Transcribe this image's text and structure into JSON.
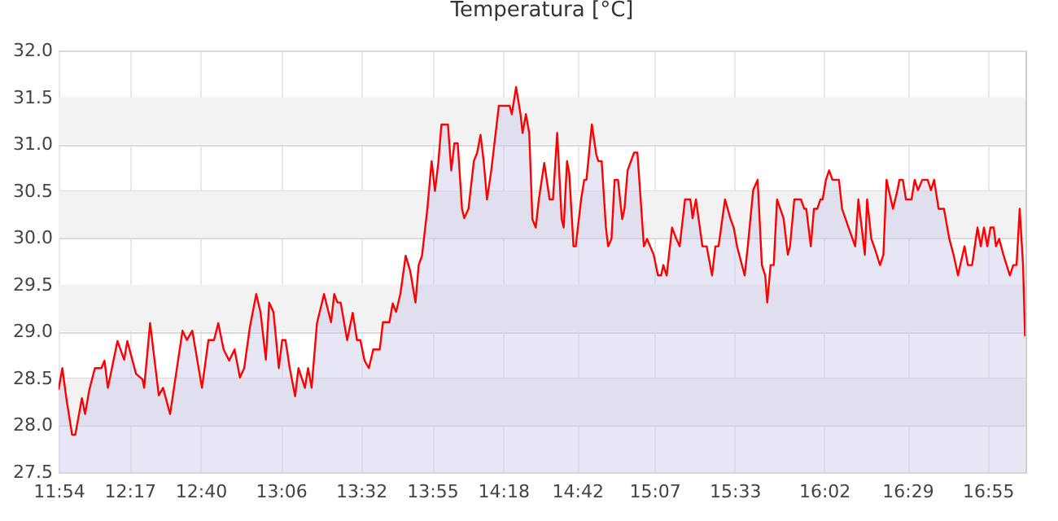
{
  "chart_data": {
    "type": "area",
    "title": "Temperatura [°C]",
    "grid": true,
    "xlim": [
      11.9,
      17.12
    ],
    "xticks": [
      {
        "value": 11.9,
        "label": "11:54"
      },
      {
        "value": 12.283,
        "label": "12:17"
      },
      {
        "value": 12.667,
        "label": "12:40"
      },
      {
        "value": 13.1,
        "label": "13:06"
      },
      {
        "value": 13.533,
        "label": "13:32"
      },
      {
        "value": 13.917,
        "label": "13:55"
      },
      {
        "value": 14.3,
        "label": "14:18"
      },
      {
        "value": 14.7,
        "label": "14:42"
      },
      {
        "value": 15.117,
        "label": "15:07"
      },
      {
        "value": 15.55,
        "label": "15:33"
      },
      {
        "value": 16.033,
        "label": "16:02"
      },
      {
        "value": 16.483,
        "label": "16:29"
      },
      {
        "value": 16.917,
        "label": "16:55"
      }
    ],
    "ylim": [
      27.5,
      32.0
    ],
    "yticks": [
      {
        "value": 27.5,
        "label": "27.5"
      },
      {
        "value": 28,
        "label": "28.0"
      },
      {
        "value": 28.5,
        "label": "28.5"
      },
      {
        "value": 29,
        "label": "29.0"
      },
      {
        "value": 29.5,
        "label": "29.5"
      },
      {
        "value": 30,
        "label": "30.0"
      },
      {
        "value": 30.5,
        "label": "30.5"
      },
      {
        "value": 31,
        "label": "31.0"
      },
      {
        "value": 31.5,
        "label": "31.5"
      },
      {
        "value": 32,
        "label": "32.0"
      }
    ],
    "bands": [
      {
        "axis": "y",
        "from": 28.0,
        "to": 28.5,
        "color": "#f2f2f2"
      },
      {
        "axis": "y",
        "from": 29.0,
        "to": 29.5,
        "color": "#f2f2f2"
      },
      {
        "axis": "y",
        "from": 30.0,
        "to": 30.5,
        "color": "#f2f2f2"
      },
      {
        "axis": "y",
        "from": 31.0,
        "to": 31.5,
        "color": "#f2f2f2"
      }
    ],
    "series": [
      {
        "color": "#ff0000",
        "x": [
          11.9,
          11.92,
          11.944,
          11.973,
          11.99,
          12.026,
          12.043,
          12.066,
          12.096,
          12.131,
          12.148,
          12.166,
          12.218,
          12.254,
          12.271,
          12.318,
          12.353,
          12.362,
          12.394,
          12.441,
          12.464,
          12.502,
          12.569,
          12.593,
          12.622,
          12.674,
          12.709,
          12.739,
          12.762,
          12.791,
          12.821,
          12.85,
          12.879,
          12.902,
          12.932,
          12.967,
          12.99,
          13.019,
          13.037,
          13.06,
          13.089,
          13.107,
          13.125,
          13.148,
          13.177,
          13.195,
          13.23,
          13.247,
          13.266,
          13.295,
          13.333,
          13.371,
          13.388,
          13.406,
          13.423,
          13.458,
          13.488,
          13.511,
          13.529,
          13.552,
          13.575,
          13.599,
          13.634,
          13.651,
          13.686,
          13.704,
          13.722,
          13.745,
          13.774,
          13.798,
          13.827,
          13.844,
          13.862,
          13.891,
          13.914,
          13.932,
          13.95,
          13.967,
          14.002,
          14.02,
          14.037,
          14.055,
          14.078,
          14.09,
          14.113,
          14.142,
          14.16,
          14.178,
          14.195,
          14.213,
          14.236,
          14.277,
          14.335,
          14.347,
          14.37,
          14.394,
          14.405,
          14.423,
          14.441,
          14.458,
          14.476,
          14.493,
          14.522,
          14.551,
          14.569,
          14.592,
          14.616,
          14.627,
          14.645,
          14.657,
          14.68,
          14.692,
          14.721,
          14.738,
          14.75,
          14.779,
          14.803,
          14.814,
          14.832,
          14.855,
          14.867,
          14.885,
          14.902,
          14.92,
          14.943,
          14.955,
          14.972,
          15.007,
          15.025,
          15.06,
          15.077,
          15.113,
          15.136,
          15.153,
          15.165,
          15.183,
          15.212,
          15.235,
          15.253,
          15.282,
          15.311,
          15.323,
          15.341,
          15.376,
          15.399,
          15.428,
          15.446,
          15.463,
          15.498,
          15.528,
          15.545,
          15.563,
          15.604,
          15.621,
          15.65,
          15.674,
          15.697,
          15.715,
          15.726,
          15.744,
          15.761,
          15.779,
          15.814,
          15.837,
          15.849,
          15.872,
          15.891,
          15.908,
          15.926,
          15.937,
          15.961,
          15.978,
          15.996,
          16.013,
          16.025,
          16.043,
          16.06,
          16.078,
          16.113,
          16.13,
          16.165,
          16.201,
          16.218,
          16.236,
          16.253,
          16.265,
          16.288,
          16.306,
          16.335,
          16.353,
          16.37,
          16.382,
          16.405,
          16.429,
          16.44,
          16.458,
          16.475,
          16.505,
          16.522,
          16.54,
          16.563,
          16.592,
          16.61,
          16.627,
          16.651,
          16.68,
          16.709,
          16.732,
          16.756,
          16.768,
          16.791,
          16.809,
          16.832,
          16.861,
          16.879,
          16.896,
          16.914,
          16.931,
          16.949,
          16.961,
          16.978,
          17.001,
          17.036,
          17.054,
          17.072,
          17.089,
          17.107,
          17.118
        ],
        "values": [
          28.38,
          28.61,
          28.26,
          27.9,
          27.9,
          28.29,
          28.12,
          28.38,
          28.61,
          28.61,
          28.69,
          28.4,
          28.9,
          28.7,
          28.9,
          28.55,
          28.49,
          28.4,
          29.09,
          28.32,
          28.4,
          28.12,
          29.01,
          28.91,
          29.01,
          28.4,
          28.91,
          28.91,
          29.09,
          28.81,
          28.69,
          28.81,
          28.51,
          28.61,
          29.04,
          29.4,
          29.21,
          28.7,
          29.31,
          29.21,
          28.61,
          28.91,
          28.91,
          28.61,
          28.31,
          28.61,
          28.4,
          28.61,
          28.4,
          29.09,
          29.4,
          29.1,
          29.4,
          29.31,
          29.31,
          28.91,
          29.2,
          28.91,
          28.91,
          28.69,
          28.61,
          28.81,
          28.81,
          29.1,
          29.1,
          29.3,
          29.21,
          29.4,
          29.81,
          29.65,
          29.31,
          29.71,
          29.81,
          30.31,
          30.82,
          30.5,
          30.8,
          31.21,
          31.21,
          30.72,
          31.01,
          31.01,
          30.31,
          30.21,
          30.31,
          30.82,
          30.91,
          31.1,
          30.82,
          30.41,
          30.72,
          31.41,
          31.41,
          31.32,
          31.61,
          31.32,
          31.12,
          31.32,
          31.12,
          30.2,
          30.11,
          30.41,
          30.8,
          30.41,
          30.41,
          31.12,
          30.2,
          30.11,
          30.82,
          30.69,
          29.91,
          29.91,
          30.41,
          30.62,
          30.62,
          31.21,
          30.89,
          30.82,
          30.82,
          30.11,
          29.91,
          29.99,
          30.62,
          30.62,
          30.2,
          30.31,
          30.72,
          30.91,
          30.91,
          29.91,
          29.99,
          29.82,
          29.6,
          29.6,
          29.71,
          29.6,
          30.11,
          29.99,
          29.91,
          30.41,
          30.41,
          30.21,
          30.41,
          29.91,
          29.91,
          29.6,
          29.91,
          29.91,
          30.41,
          30.2,
          30.11,
          29.91,
          29.6,
          29.91,
          30.51,
          30.62,
          29.71,
          29.6,
          29.31,
          29.71,
          29.71,
          30.41,
          30.21,
          29.82,
          29.91,
          30.41,
          30.41,
          30.41,
          30.31,
          30.31,
          29.91,
          30.31,
          30.31,
          30.41,
          30.41,
          30.62,
          30.72,
          30.62,
          30.62,
          30.31,
          30.11,
          29.91,
          30.41,
          30.11,
          29.82,
          30.41,
          29.99,
          29.89,
          29.71,
          29.82,
          30.62,
          30.51,
          30.31,
          30.51,
          30.62,
          30.62,
          30.41,
          30.41,
          30.62,
          30.51,
          30.62,
          30.62,
          30.51,
          30.62,
          30.31,
          30.31,
          29.99,
          29.82,
          29.6,
          29.71,
          29.91,
          29.71,
          29.71,
          30.11,
          29.91,
          30.11,
          29.91,
          30.11,
          30.11,
          29.91,
          29.99,
          29.82,
          29.6,
          29.71,
          29.71,
          30.31,
          29.71,
          28.95
        ]
      }
    ]
  }
}
